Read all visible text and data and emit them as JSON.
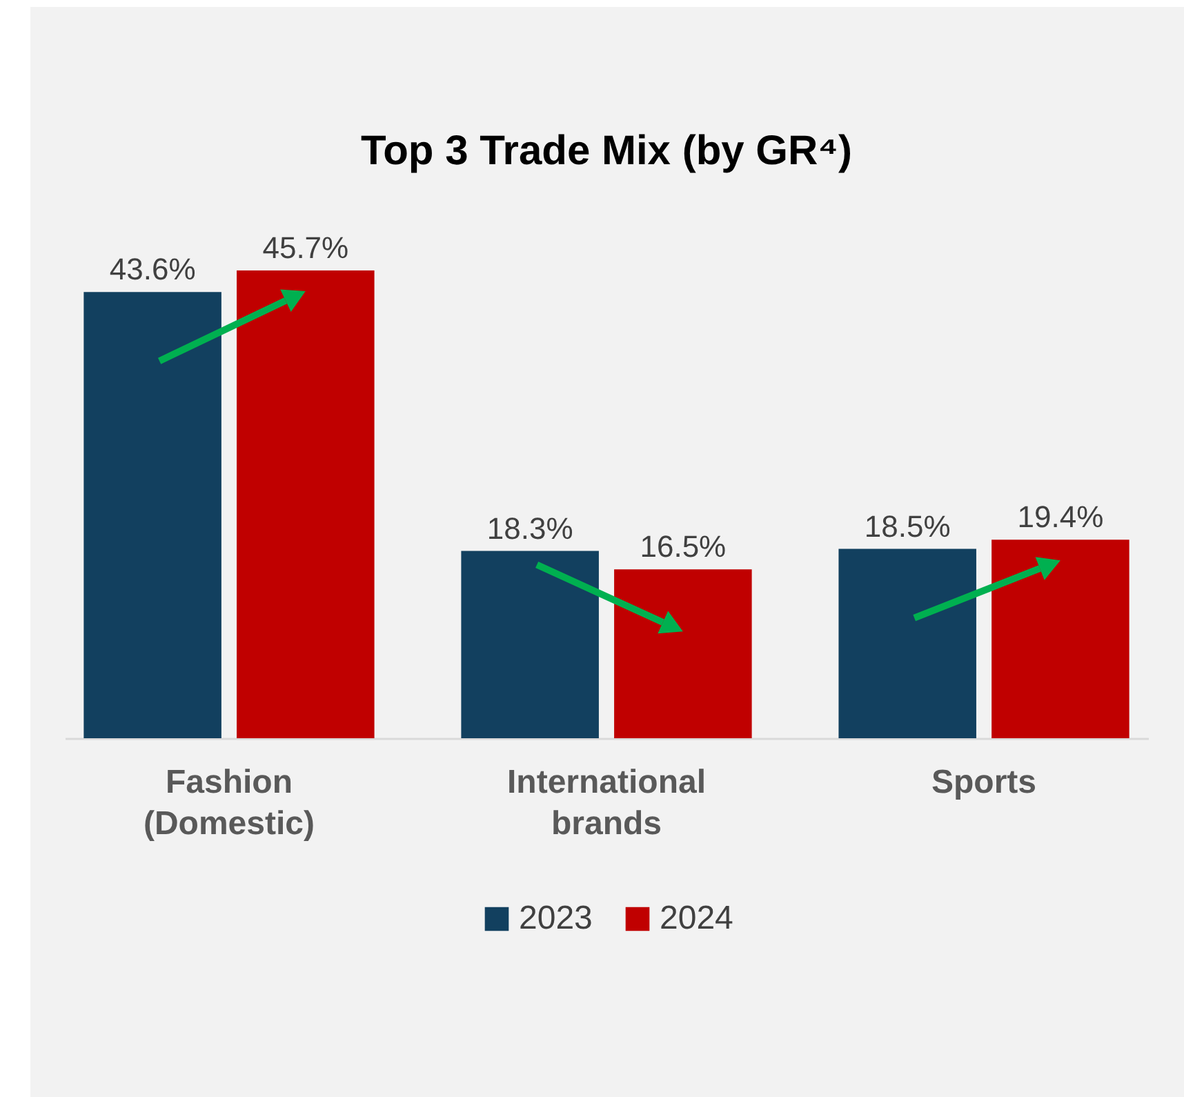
{
  "chart_data": {
    "type": "bar",
    "title": "Top 3 Trade Mix (by GR⁴)",
    "categories": [
      "Fashion (Domestic)",
      "International brands",
      "Sports"
    ],
    "series": [
      {
        "name": "2023",
        "color": "#12405f",
        "values": [
          43.6,
          18.3,
          18.5
        ],
        "value_labels": [
          "43.6%",
          "18.3%",
          "18.5%"
        ]
      },
      {
        "name": "2024",
        "color": "#c00000",
        "values": [
          45.7,
          16.5,
          19.4
        ],
        "value_labels": [
          "45.7%",
          "16.5%",
          "19.4%"
        ]
      }
    ],
    "legend": "bottom",
    "grid": false
  }
}
